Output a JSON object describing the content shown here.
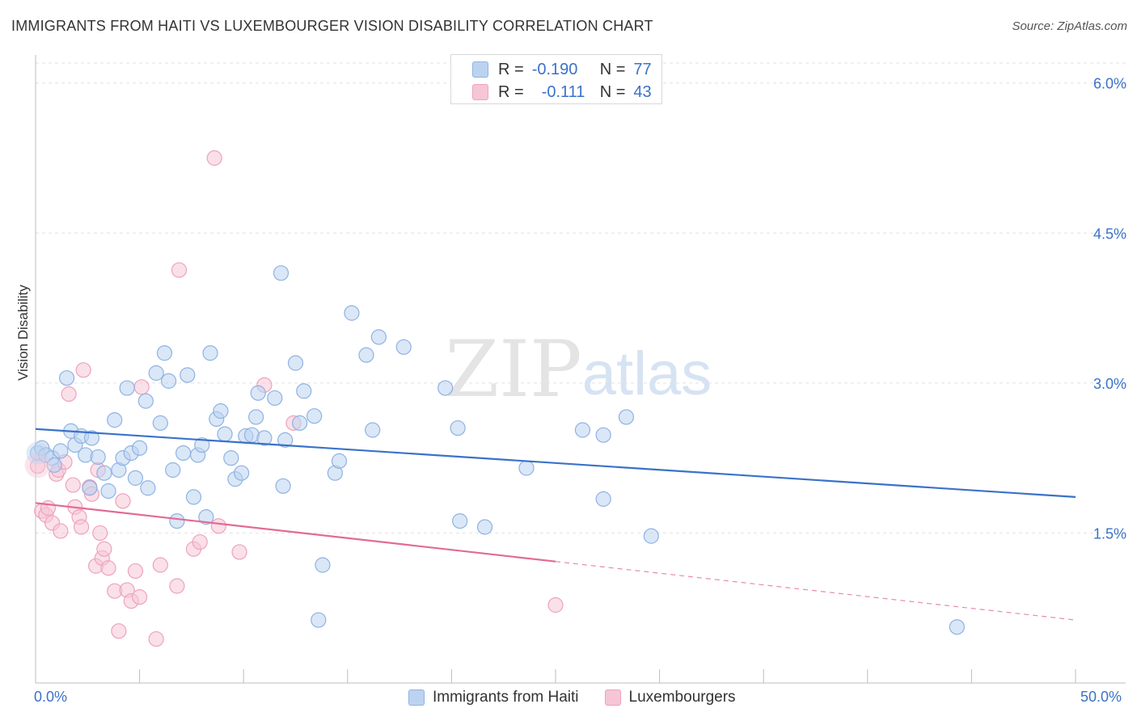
{
  "title": "IMMIGRANTS FROM HAITI VS LUXEMBOURGER VISION DISABILITY CORRELATION CHART",
  "source": "Source: ZipAtlas.com",
  "watermark": {
    "zip": "ZIP",
    "atlas": "atlas"
  },
  "legend_top": {
    "r_label": "R =",
    "n_label": "N =",
    "rows": [
      {
        "r": "-0.190",
        "n": "77"
      },
      {
        "r": "-0.111",
        "n": "43"
      }
    ]
  },
  "legend_bottom": [
    "Immigrants from Haiti",
    "Luxembourgers"
  ],
  "x_min_label": "0.0%",
  "x_max_label": "50.0%",
  "colors": {
    "blue": "#3a72c8",
    "blue_fill": "#bcd3f0",
    "blue_stroke": "#8fb2e3",
    "pink": "#e26b94",
    "pink_fill": "#f6c6d6",
    "pink_stroke": "#eea2bd"
  },
  "chart_data": {
    "type": "scatter",
    "title": "IMMIGRANTS FROM HAITI VS LUXEMBOURGER VISION DISABILITY CORRELATION CHART",
    "xlabel": "",
    "ylabel": "Vision Disability",
    "xlim": [
      0,
      50
    ],
    "ylim": [
      0,
      6.2
    ],
    "y_ticks": [
      1.5,
      3.0,
      4.5,
      6.0
    ],
    "y_tick_labels": [
      "1.5%",
      "3.0%",
      "4.5%",
      "6.0%"
    ],
    "x_tick_labels": [
      "0.0%",
      "50.0%"
    ],
    "grid": true,
    "legend_position": "top-center",
    "series": [
      {
        "name": "Immigrants from Haiti",
        "color": "#3a72c8",
        "r": -0.19,
        "n": 77,
        "trend": {
          "x": [
            0,
            50
          ],
          "y": [
            2.54,
            1.86
          ],
          "solid_to": 50
        },
        "points": [
          [
            0.1,
            2.3
          ],
          [
            0.3,
            2.35
          ],
          [
            0.5,
            2.28
          ],
          [
            0.8,
            2.25
          ],
          [
            0.9,
            2.18
          ],
          [
            1.2,
            2.32
          ],
          [
            1.5,
            3.05
          ],
          [
            1.7,
            2.52
          ],
          [
            1.9,
            2.38
          ],
          [
            2.2,
            2.47
          ],
          [
            2.4,
            2.28
          ],
          [
            2.6,
            1.95
          ],
          [
            2.7,
            2.45
          ],
          [
            3.0,
            2.26
          ],
          [
            3.3,
            2.1
          ],
          [
            3.5,
            1.92
          ],
          [
            3.8,
            2.63
          ],
          [
            4.0,
            2.13
          ],
          [
            4.2,
            2.25
          ],
          [
            4.4,
            2.95
          ],
          [
            4.6,
            2.3
          ],
          [
            4.8,
            2.05
          ],
          [
            5.0,
            2.35
          ],
          [
            5.3,
            2.82
          ],
          [
            5.4,
            1.95
          ],
          [
            5.8,
            3.1
          ],
          [
            6.0,
            2.6
          ],
          [
            6.2,
            3.3
          ],
          [
            6.4,
            3.02
          ],
          [
            6.6,
            2.13
          ],
          [
            6.8,
            1.62
          ],
          [
            7.1,
            2.3
          ],
          [
            7.3,
            3.08
          ],
          [
            7.6,
            1.86
          ],
          [
            7.8,
            2.28
          ],
          [
            8.0,
            2.38
          ],
          [
            8.2,
            1.66
          ],
          [
            8.4,
            3.3
          ],
          [
            8.7,
            2.64
          ],
          [
            8.9,
            2.72
          ],
          [
            9.1,
            2.49
          ],
          [
            9.4,
            2.25
          ],
          [
            9.6,
            2.04
          ],
          [
            9.9,
            2.1
          ],
          [
            10.1,
            2.47
          ],
          [
            10.4,
            2.48
          ],
          [
            10.6,
            2.66
          ],
          [
            10.7,
            2.9
          ],
          [
            11.0,
            2.45
          ],
          [
            11.5,
            2.85
          ],
          [
            11.8,
            4.1
          ],
          [
            11.9,
            1.97
          ],
          [
            12.0,
            2.43
          ],
          [
            12.5,
            3.2
          ],
          [
            12.7,
            2.6
          ],
          [
            12.9,
            2.92
          ],
          [
            13.4,
            2.67
          ],
          [
            13.6,
            0.63
          ],
          [
            13.8,
            1.18
          ],
          [
            14.4,
            2.1
          ],
          [
            14.6,
            2.22
          ],
          [
            15.2,
            3.7
          ],
          [
            15.9,
            3.28
          ],
          [
            16.2,
            2.53
          ],
          [
            16.5,
            3.46
          ],
          [
            17.7,
            3.36
          ],
          [
            19.7,
            2.95
          ],
          [
            20.3,
            2.55
          ],
          [
            20.4,
            1.62
          ],
          [
            21.6,
            1.56
          ],
          [
            23.6,
            2.15
          ],
          [
            26.3,
            2.53
          ],
          [
            27.3,
            2.48
          ],
          [
            27.3,
            1.84
          ],
          [
            28.4,
            2.66
          ],
          [
            29.6,
            1.47
          ],
          [
            44.3,
            0.56
          ]
        ]
      },
      {
        "name": "Luxembourgers",
        "color": "#e26b94",
        "r": -0.111,
        "n": 43,
        "trend": {
          "x": [
            0,
            50
          ],
          "y": [
            1.8,
            0.63
          ],
          "solid_to": 25
        },
        "points": [
          [
            0.1,
            2.17
          ],
          [
            0.3,
            1.72
          ],
          [
            0.5,
            1.68
          ],
          [
            0.6,
            1.75
          ],
          [
            0.8,
            1.6
          ],
          [
            1.0,
            2.09
          ],
          [
            1.1,
            2.13
          ],
          [
            1.2,
            1.52
          ],
          [
            1.4,
            2.21
          ],
          [
            1.6,
            2.89
          ],
          [
            1.8,
            1.98
          ],
          [
            1.9,
            1.76
          ],
          [
            2.1,
            1.66
          ],
          [
            2.2,
            1.56
          ],
          [
            2.3,
            3.13
          ],
          [
            2.6,
            1.96
          ],
          [
            2.7,
            1.89
          ],
          [
            2.9,
            1.17
          ],
          [
            3.0,
            2.13
          ],
          [
            3.1,
            1.5
          ],
          [
            3.2,
            1.25
          ],
          [
            3.3,
            1.34
          ],
          [
            3.5,
            1.15
          ],
          [
            3.8,
            0.92
          ],
          [
            4.0,
            0.52
          ],
          [
            4.2,
            1.82
          ],
          [
            4.4,
            0.93
          ],
          [
            4.6,
            0.82
          ],
          [
            4.8,
            1.12
          ],
          [
            5.0,
            0.86
          ],
          [
            5.1,
            2.96
          ],
          [
            5.8,
            0.44
          ],
          [
            6.0,
            1.18
          ],
          [
            6.8,
            0.97
          ],
          [
            6.9,
            4.13
          ],
          [
            7.6,
            1.34
          ],
          [
            7.9,
            1.41
          ],
          [
            8.6,
            5.25
          ],
          [
            8.8,
            1.57
          ],
          [
            9.8,
            1.31
          ],
          [
            11.0,
            2.98
          ],
          [
            12.4,
            2.6
          ],
          [
            25.0,
            0.78
          ]
        ]
      }
    ]
  }
}
